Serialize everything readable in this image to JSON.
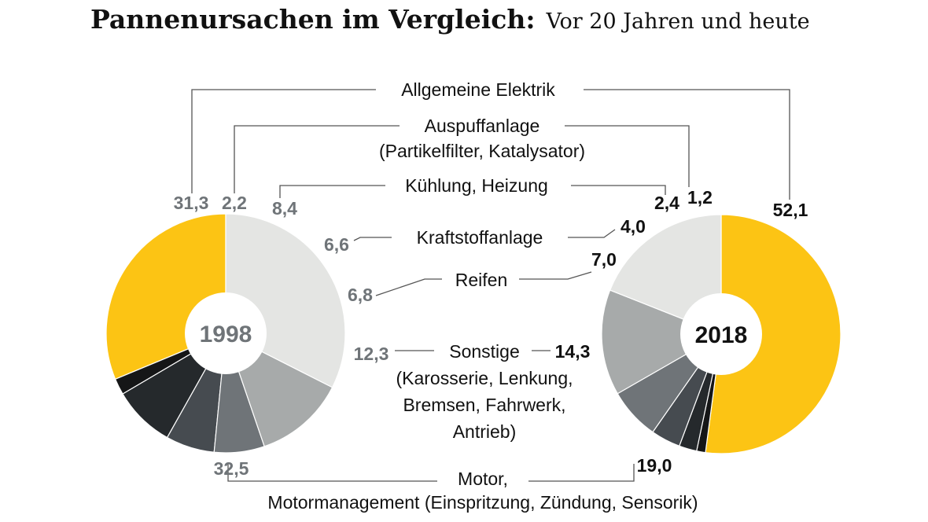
{
  "title": "Pannenursachen im Vergleich:",
  "subtitle": "Vor 20 Jahren und heute",
  "chart_data": {
    "type": "pie",
    "categories": [
      [
        "Allgemeine Elektrik"
      ],
      [
        "Auspuffanlage",
        "(Partikelfilter, Katalysator)"
      ],
      [
        "Kühlung, Heizung"
      ],
      [
        "Kraftstoffanlage"
      ],
      [
        "Reifen"
      ],
      [
        "Sonstige",
        "(Karosserie, Lenkung,",
        "Bremsen, Fahrwerk,",
        "Antrieb)"
      ],
      [
        "Motor,",
        "Motormanagement (Einspritzung, Zündung, Sensorik)"
      ]
    ],
    "colors": [
      "#fcc414",
      "#151617",
      "#25292c",
      "#464b50",
      "#6f7478",
      "#a7aaaa",
      "#e4e5e3"
    ],
    "series": [
      {
        "name": "1998",
        "values": [
          31.3,
          2.2,
          8.4,
          6.6,
          6.8,
          12.3,
          32.5
        ],
        "labels": [
          "31,3",
          "2,2",
          "8,4",
          "6,6",
          "6,8",
          "12,3",
          "32,5"
        ]
      },
      {
        "name": "2018",
        "values": [
          52.1,
          1.2,
          2.4,
          4.0,
          7.0,
          14.3,
          19.0
        ],
        "labels": [
          "52,1",
          "1,2",
          "2,4",
          "4,0",
          "7,0",
          "14,3",
          "19,0"
        ]
      }
    ]
  }
}
